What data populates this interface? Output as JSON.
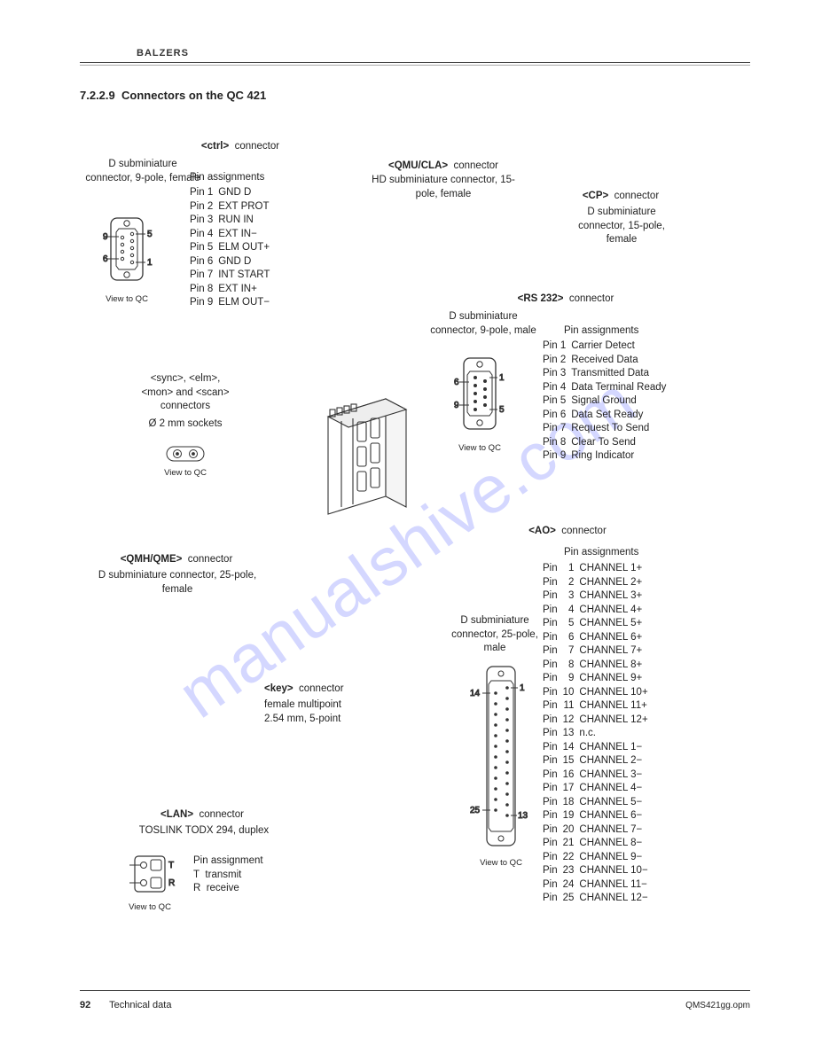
{
  "brand": "BALZERS",
  "section_number": "7.2.2.9",
  "section_title": "Connectors on the QC 421",
  "watermark": "manualshive.com",
  "footer": {
    "page": "92",
    "label": "Technical data",
    "doc": "QMS421gg.opm"
  },
  "view_label": "View to QC",
  "ctrl": {
    "heading_pre": "<ctrl>",
    "heading_post": "connector",
    "conn_type": "D subminiature connector, 9-pole, female",
    "pin_heading": "Pin assignments",
    "pins": [
      {
        "pin": "Pin 1",
        "fn": "GND D"
      },
      {
        "pin": "Pin 2",
        "fn": "EXT PROT"
      },
      {
        "pin": "Pin 3",
        "fn": "RUN IN"
      },
      {
        "pin": "Pin 4",
        "fn": "EXT IN−"
      },
      {
        "pin": "Pin 5",
        "fn": "ELM OUT+"
      },
      {
        "pin": "Pin 6",
        "fn": "GND D"
      },
      {
        "pin": "Pin 7",
        "fn": "INT START"
      },
      {
        "pin": "Pin 8",
        "fn": "EXT IN+"
      },
      {
        "pin": "Pin 9",
        "fn": "ELM OUT−"
      }
    ],
    "labels": {
      "p9": "9",
      "p6": "6",
      "p5": "5",
      "p1": "1"
    }
  },
  "sync": {
    "line1": "<sync>, <elm>,",
    "line2": "<mon> and <scan>",
    "line3": "connectors",
    "line4": "Ø 2 mm sockets"
  },
  "qmh": {
    "heading_pre": "<QMH/QME>",
    "heading_post": "connector",
    "conn_type": "D subminiature connector, 25-pole, female"
  },
  "key": {
    "heading_pre": "<key>",
    "heading_post": "connector",
    "line1": "female multipoint",
    "line2": "2.54 mm, 5-point"
  },
  "lan": {
    "heading_pre": "<LAN>",
    "heading_post": "connector",
    "line1": "TOSLINK TODX 294,  duplex",
    "pin_heading": "Pin assignment",
    "t_label": "T",
    "t_fn": "transmit",
    "r_label": "R",
    "r_fn": "receive"
  },
  "qmu": {
    "heading_pre": "<QMU/CLA>",
    "heading_post": "connector",
    "conn_type": "HD subminiature connector, 15-pole, female"
  },
  "cp": {
    "heading_pre": "<CP>",
    "heading_post": "connector",
    "conn_type": "D subminiature connector, 15-pole, female"
  },
  "rs232": {
    "heading_pre": "<RS 232>",
    "heading_post": "connector",
    "conn_type": "D subminiature connector, 9-pole, male",
    "pin_heading": "Pin assignments",
    "pins": [
      {
        "pin": "Pin 1",
        "fn": "Carrier Detect"
      },
      {
        "pin": "Pin 2",
        "fn": "Received Data"
      },
      {
        "pin": "Pin 3",
        "fn": "Transmitted Data"
      },
      {
        "pin": "Pin 4",
        "fn": "Data Terminal Ready"
      },
      {
        "pin": "Pin 5",
        "fn": "Signal Ground"
      },
      {
        "pin": "Pin 6",
        "fn": "Data Set Ready"
      },
      {
        "pin": "Pin 7",
        "fn": "Request To Send"
      },
      {
        "pin": "Pin 8",
        "fn": "Clear To Send"
      },
      {
        "pin": "Pin 9",
        "fn": "Ring Indicator"
      }
    ],
    "labels": {
      "p6": "6",
      "p9": "9",
      "p1": "1",
      "p5": "5"
    }
  },
  "ao": {
    "heading_pre": "<AO>",
    "heading_post": "connector",
    "conn_type": "D subminiature connector, 25-pole, male",
    "pin_heading": "Pin assignments",
    "pins": [
      {
        "pin": "Pin",
        "n": "1",
        "fn": "CHANNEL  1+"
      },
      {
        "pin": "Pin",
        "n": "2",
        "fn": "CHANNEL  2+"
      },
      {
        "pin": "Pin",
        "n": "3",
        "fn": "CHANNEL  3+"
      },
      {
        "pin": "Pin",
        "n": "4",
        "fn": "CHANNEL  4+"
      },
      {
        "pin": "Pin",
        "n": "5",
        "fn": "CHANNEL  5+"
      },
      {
        "pin": "Pin",
        "n": "6",
        "fn": "CHANNEL  6+"
      },
      {
        "pin": "Pin",
        "n": "7",
        "fn": "CHANNEL  7+"
      },
      {
        "pin": "Pin",
        "n": "8",
        "fn": "CHANNEL  8+"
      },
      {
        "pin": "Pin",
        "n": "9",
        "fn": "CHANNEL  9+"
      },
      {
        "pin": "Pin",
        "n": "10",
        "fn": "CHANNEL 10+"
      },
      {
        "pin": "Pin",
        "n": "11",
        "fn": "CHANNEL 11+"
      },
      {
        "pin": "Pin",
        "n": "12",
        "fn": "CHANNEL 12+"
      },
      {
        "pin": "Pin",
        "n": "13",
        "fn": "n.c."
      },
      {
        "pin": "Pin",
        "n": "14",
        "fn": "CHANNEL  1−"
      },
      {
        "pin": "Pin",
        "n": "15",
        "fn": "CHANNEL  2−"
      },
      {
        "pin": "Pin",
        "n": "16",
        "fn": "CHANNEL  3−"
      },
      {
        "pin": "Pin",
        "n": "17",
        "fn": "CHANNEL  4−"
      },
      {
        "pin": "Pin",
        "n": "18",
        "fn": "CHANNEL  5−"
      },
      {
        "pin": "Pin",
        "n": "19",
        "fn": "CHANNEL  6−"
      },
      {
        "pin": "Pin",
        "n": "20",
        "fn": "CHANNEL  7−"
      },
      {
        "pin": "Pin",
        "n": "21",
        "fn": "CHANNEL  8−"
      },
      {
        "pin": "Pin",
        "n": "22",
        "fn": "CHANNEL  9−"
      },
      {
        "pin": "Pin",
        "n": "23",
        "fn": "CHANNEL 10−"
      },
      {
        "pin": "Pin",
        "n": "24",
        "fn": "CHANNEL 11−"
      },
      {
        "pin": "Pin",
        "n": "25",
        "fn": "CHANNEL 12−"
      }
    ],
    "labels": {
      "p14": "14",
      "p25": "25",
      "p1": "1",
      "p13": "13"
    }
  }
}
